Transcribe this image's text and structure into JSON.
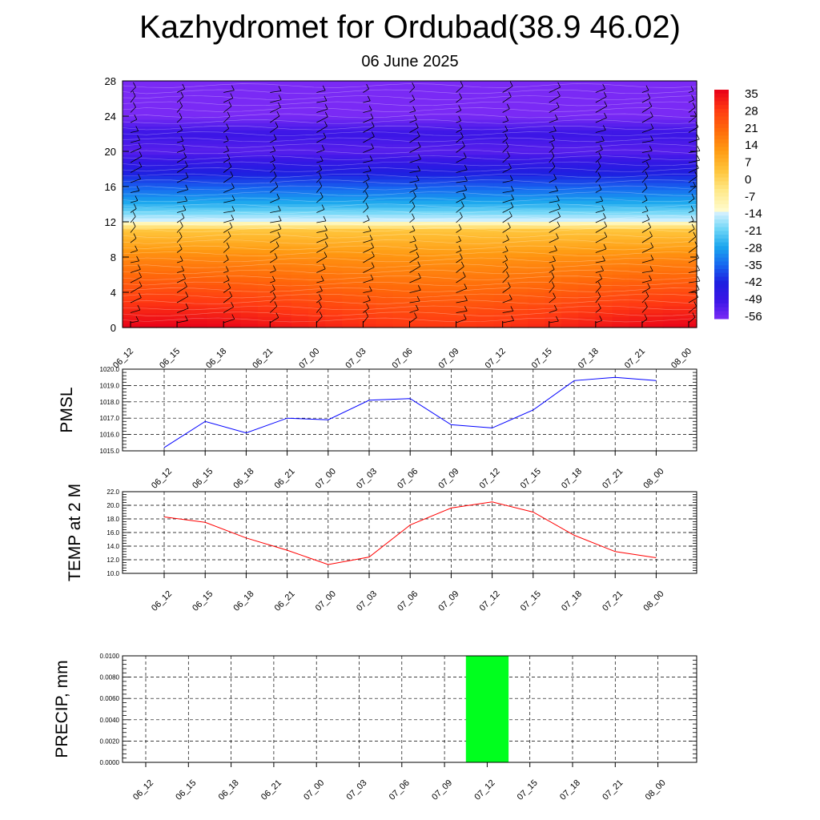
{
  "header": {
    "title": "Kazhydromet for Ordubad(38.9 46.02)",
    "subtitle": "06 June 2025"
  },
  "time_labels": [
    "06_12",
    "06_15",
    "06_18",
    "06_21",
    "07_00",
    "07_03",
    "07_06",
    "07_09",
    "07_12",
    "07_15",
    "07_18",
    "07_21",
    "08_00"
  ],
  "chart_data": [
    {
      "type": "heatmap",
      "name": "",
      "ylabel": "",
      "y_ticks": [
        0,
        4,
        8,
        12,
        16,
        20,
        24,
        28
      ],
      "ylim": [
        0,
        28
      ],
      "colorbar_labels": [
        "35",
        "28",
        "21",
        "14",
        "7",
        "0",
        "-7",
        "-14",
        "-21",
        "-28",
        "-35",
        "-42",
        "-49",
        "-56"
      ],
      "colorbar_range": [
        -60,
        38
      ],
      "colors": {
        "warm": [
          "#e8001a",
          "#ff3a12",
          "#ff6a0a",
          "#ff9a12",
          "#ffc43a",
          "#ffe98a",
          "#fffcd0"
        ],
        "cold": [
          "#dff3ff",
          "#6fd6f7",
          "#1aa6ee",
          "#1767f0",
          "#1e1ee0",
          "#3b16e6",
          "#7a2af5"
        ]
      },
      "temperature_profile": [
        {
          "height": 0,
          "value": 34
        },
        {
          "height": 4,
          "value": 24
        },
        {
          "height": 8,
          "value": 14
        },
        {
          "height": 11,
          "value": 3
        },
        {
          "height": 12,
          "value": -14
        },
        {
          "height": 14,
          "value": -28
        },
        {
          "height": 16,
          "value": -38
        },
        {
          "height": 18,
          "value": -47
        },
        {
          "height": 20,
          "value": -56
        },
        {
          "height": 22,
          "value": -52
        },
        {
          "height": 24,
          "value": -60
        },
        {
          "height": 28,
          "value": -60
        }
      ],
      "wind_barbs": true
    },
    {
      "type": "line",
      "name": "PMSL",
      "ylabel": "PMSL",
      "categories": [
        "06_12",
        "06_15",
        "06_18",
        "06_21",
        "07_00",
        "07_03",
        "07_06",
        "07_09",
        "07_12",
        "07_15",
        "07_18",
        "07_21",
        "08_00"
      ],
      "values": [
        1015.2,
        1016.8,
        1016.1,
        1017.0,
        1016.9,
        1018.1,
        1018.2,
        1016.6,
        1016.4,
        1017.5,
        1019.3,
        1019.5,
        1019.3
      ],
      "y_ticks": [
        "1015.0",
        "1016.0",
        "1017.0",
        "1018.0",
        "1019.0",
        "1020.0"
      ],
      "ylim": [
        1015.0,
        1020.0
      ],
      "color": "#0000ff",
      "grid": true
    },
    {
      "type": "line",
      "name": "TEMP at 2 M",
      "ylabel": "TEMP at 2 M",
      "categories": [
        "06_12",
        "06_15",
        "06_18",
        "06_21",
        "07_00",
        "07_03",
        "07_06",
        "07_09",
        "07_12",
        "07_15",
        "07_18",
        "07_21",
        "08_00"
      ],
      "values": [
        18.3,
        17.5,
        15.2,
        13.4,
        11.3,
        12.4,
        17.1,
        19.6,
        20.5,
        19.0,
        15.6,
        13.2,
        12.3
      ],
      "y_ticks": [
        "10.0",
        "12.0",
        "14.0",
        "16.0",
        "18.0",
        "20.0",
        "22.0"
      ],
      "ylim": [
        10.0,
        22.0
      ],
      "color": "#ff0000",
      "grid": true
    },
    {
      "type": "bar",
      "name": "PRECIP, mm",
      "ylabel": "PRECIP, mm",
      "categories": [
        "06_12",
        "06_15",
        "06_18",
        "06_21",
        "07_00",
        "07_03",
        "07_06",
        "07_09",
        "07_12",
        "07_15",
        "07_18",
        "07_21",
        "08_00"
      ],
      "values": [
        0,
        0,
        0,
        0,
        0,
        0,
        0,
        0,
        0.01,
        0,
        0,
        0,
        0
      ],
      "y_ticks": [
        "0.0000",
        "0.0020",
        "0.0040",
        "0.0060",
        "0.0080",
        "0.0100"
      ],
      "ylim": [
        0,
        0.01
      ],
      "color": "#00ff1e",
      "grid": true
    }
  ]
}
